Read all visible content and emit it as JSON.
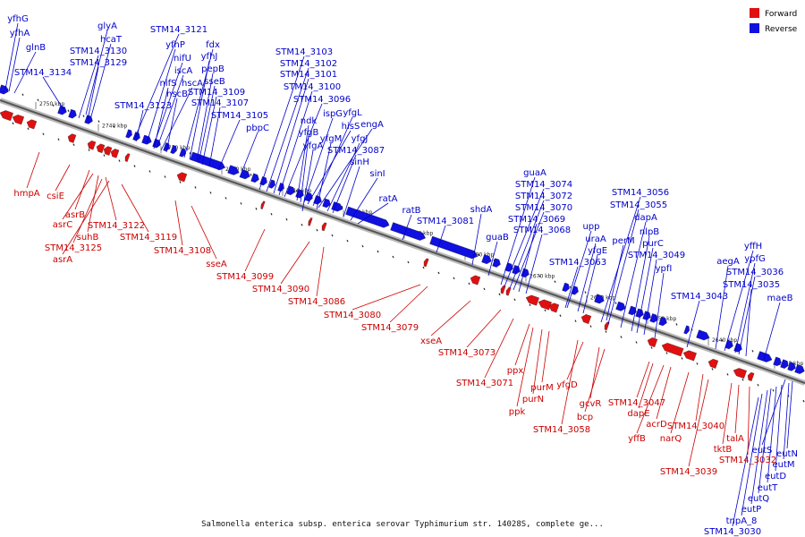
{
  "legend": {
    "forward": {
      "label": "Forward",
      "color": "#e01010"
    },
    "reverse": {
      "label": "Reverse",
      "color": "#1010e0"
    }
  },
  "colors": {
    "forward_text": "#cc0000",
    "reverse_text": "#0000cc",
    "backbone": "#555555"
  },
  "caption": "Salmonella enterica subsp. enterica serovar Typhimurium str. 14028S, complete ge...",
  "ticks": [
    "2750 kbp",
    "2740 kbp",
    "2730 kbp",
    "2720 kbp",
    "2710 kbp",
    "2700 kbp",
    "2690 kbp",
    "2680 kbp",
    "2670 kbp",
    "2660 kbp",
    "2650 kbp",
    "2640 kbp",
    "2630 kbp"
  ],
  "reverse_labels": [
    "yfhG",
    "yfhA",
    "glnB",
    "STM14_3134",
    "glyA",
    "hcaT",
    "STM14_3130",
    "STM14_3129",
    "STM14_3121",
    "yfhP",
    "nifU",
    "iscA",
    "nifS",
    "hscA",
    "hscB",
    "STM14_3123",
    "fdx",
    "yfhJ",
    "pepB",
    "sseB",
    "STM14_3109",
    "STM14_3107",
    "STM14_3105",
    "pbpC",
    "STM14_3103",
    "STM14_3102",
    "STM14_3101",
    "STM14_3100",
    "STM14_3096",
    "ndk",
    "ispG",
    "hisS",
    "yfgL",
    "yfgB",
    "engA",
    "yfgM",
    "yfgJ",
    "yfgA",
    "STM14_3087",
    "sinH",
    "sinI",
    "ratA",
    "ratB",
    "STM14_3081",
    "shdA",
    "guaB",
    "guaA",
    "STM14_3074",
    "STM14_3072",
    "STM14_3070",
    "STM14_3069",
    "STM14_3068",
    "upp",
    "uraA",
    "yfgE",
    "STM14_3063",
    "STM14_3056",
    "STM14_3055",
    "dapA",
    "perM",
    "nlpB",
    "purC",
    "STM14_3049",
    "ypfI",
    "STM14_3043",
    "aegA",
    "yffH",
    "ypfG",
    "STM14_3036",
    "STM14_3035",
    "maeB",
    "eutS",
    "eutN",
    "eutM",
    "eutD",
    "eutT",
    "eutQ",
    "eutP",
    "tnpA_8",
    "STM14_3030"
  ],
  "forward_labels": [
    "hmpA",
    "csiE",
    "asrB",
    "asrC",
    "suhB",
    "STM14_3122",
    "STM14_3125",
    "asrA",
    "STM14_3119",
    "STM14_3108",
    "sseA",
    "STM14_3099",
    "STM14_3090",
    "STM14_3086",
    "STM14_3080",
    "STM14_3079",
    "xseA",
    "STM14_3073",
    "ppx",
    "STM14_3071",
    "purM",
    "purN",
    "ppk",
    "yfgD",
    "STM14_3058",
    "gcvR",
    "bcp",
    "STM14_3047",
    "dapE",
    "yffB",
    "acrD",
    "STM14_3040",
    "narQ",
    "STM14_3039",
    "talA",
    "tktB",
    "STM14_3032"
  ]
}
